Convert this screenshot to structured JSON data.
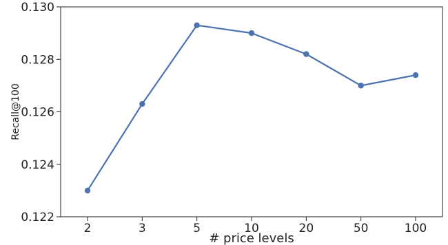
{
  "chart_data": {
    "type": "line",
    "title": "",
    "xlabel": "# price levels",
    "ylabel": "Recall@100",
    "categories": [
      "2",
      "3",
      "5",
      "10",
      "20",
      "50",
      "100"
    ],
    "series": [
      {
        "values": [
          0.123,
          0.1263,
          0.1293,
          0.129,
          0.1282,
          0.127,
          0.1274
        ],
        "color": "#4c72b0"
      }
    ],
    "ylim": [
      0.122,
      0.13
    ],
    "yticks": [
      "0.122",
      "0.124",
      "0.126",
      "0.128",
      "0.130"
    ],
    "grid": false,
    "legend": "none"
  }
}
